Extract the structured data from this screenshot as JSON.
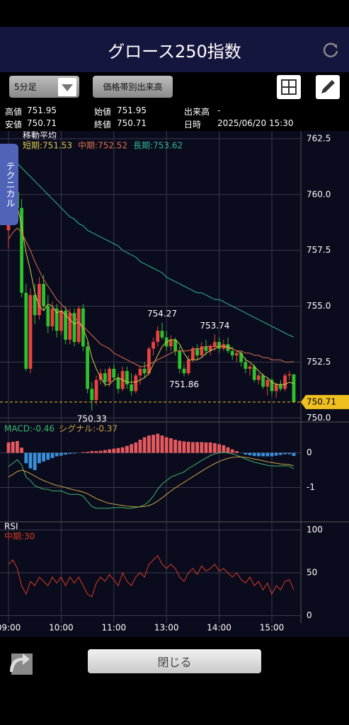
{
  "header": {
    "title": "グロース250指数"
  },
  "toolbar": {
    "interval": "5分足",
    "volume_button": "価格帯別出来高"
  },
  "info": [
    {
      "label": "高値",
      "value": "751.95"
    },
    {
      "label": "始値",
      "value": "751.95"
    },
    {
      "label": "出来高",
      "value": "-"
    },
    {
      "label": "安値",
      "value": "750.71"
    },
    {
      "label": "終値",
      "value": "750.71"
    },
    {
      "label": "日時",
      "value": "2025/06/20 15:30"
    }
  ],
  "side_tab": "テクニカル",
  "footer": {
    "close_button": "閉じる"
  },
  "chart_data": {
    "type": "candlestick",
    "subtitle": "移動平均",
    "categories": [
      "09:00",
      null,
      null,
      null,
      null,
      null,
      null,
      null,
      null,
      null,
      null,
      null,
      "10:00",
      null,
      null,
      null,
      null,
      null,
      null,
      null,
      null,
      null,
      null,
      null,
      "11:00",
      null,
      null,
      null,
      null,
      null,
      null,
      null,
      null,
      null,
      null,
      null,
      "13:00",
      null,
      null,
      null,
      null,
      null,
      null,
      null,
      null,
      null,
      null,
      null,
      "14:00",
      null,
      null,
      null,
      null,
      null,
      null,
      null,
      null,
      null,
      null,
      null,
      "15:00",
      null,
      null,
      null,
      null,
      null
    ],
    "up_color": "#e8433e",
    "down_color": "#2ec12c",
    "candles": [
      [
        758.4,
        759.6,
        757.6,
        759.4
      ],
      [
        759.4,
        760.4,
        758.9,
        760.1
      ],
      [
        760.1,
        760.6,
        759.2,
        759.4
      ],
      [
        759.4,
        759.8,
        755.4,
        755.6
      ],
      [
        755.6,
        756.0,
        752.1,
        752.2
      ],
      [
        752.2,
        755.8,
        752.0,
        755.5
      ],
      [
        755.5,
        756.0,
        754.2,
        754.6
      ],
      [
        754.6,
        756.3,
        754.4,
        756.0
      ],
      [
        756.0,
        756.4,
        754.8,
        755.0
      ],
      [
        755.0,
        755.5,
        753.8,
        754.1
      ],
      [
        754.1,
        755.2,
        753.9,
        754.9
      ],
      [
        754.9,
        755.1,
        753.6,
        753.9
      ],
      [
        753.9,
        755.0,
        753.7,
        754.8
      ],
      [
        754.8,
        755.0,
        753.3,
        753.5
      ],
      [
        753.5,
        754.9,
        753.3,
        754.7
      ],
      [
        754.7,
        754.9,
        753.2,
        753.4
      ],
      [
        753.4,
        755.0,
        753.3,
        754.9
      ],
      [
        754.9,
        755.1,
        753.0,
        753.2
      ],
      [
        753.2,
        753.4,
        751.1,
        751.3
      ],
      [
        751.3,
        751.6,
        750.33,
        750.8
      ],
      [
        750.8,
        751.9,
        750.6,
        751.7
      ],
      [
        751.7,
        752.2,
        751.5,
        752.0
      ],
      [
        752.0,
        752.2,
        751.4,
        751.6
      ],
      [
        751.6,
        752.3,
        751.4,
        752.2
      ],
      [
        752.2,
        752.4,
        751.7,
        751.8
      ],
      [
        751.8,
        752.0,
        751.1,
        751.3
      ],
      [
        751.3,
        752.3,
        751.2,
        752.1
      ],
      [
        752.1,
        752.3,
        751.3,
        751.5
      ],
      [
        751.5,
        752.0,
        751.0,
        751.2
      ],
      [
        751.2,
        752.0,
        751.1,
        751.9
      ],
      [
        751.9,
        752.3,
        751.5,
        752.2
      ],
      [
        752.2,
        752.5,
        751.8,
        752.0
      ],
      [
        752.0,
        753.2,
        751.9,
        753.1
      ],
      [
        753.1,
        753.6,
        752.8,
        753.4
      ],
      [
        753.4,
        754.1,
        753.2,
        753.9
      ],
      [
        753.9,
        754.27,
        753.5,
        753.6
      ],
      [
        753.6,
        753.9,
        753.0,
        753.2
      ],
      [
        753.2,
        753.7,
        753.0,
        753.5
      ],
      [
        753.5,
        753.6,
        752.8,
        753.0
      ],
      [
        753.0,
        753.2,
        752.0,
        752.2
      ],
      [
        752.2,
        752.4,
        751.86,
        752.0
      ],
      [
        752.0,
        752.8,
        751.9,
        752.6
      ],
      [
        752.6,
        753.2,
        752.5,
        753.1
      ],
      [
        753.1,
        753.3,
        752.6,
        752.8
      ],
      [
        752.8,
        753.4,
        752.7,
        753.2
      ],
      [
        753.2,
        753.5,
        752.8,
        753.0
      ],
      [
        753.0,
        753.3,
        752.8,
        753.2
      ],
      [
        753.2,
        753.74,
        753.0,
        753.4
      ],
      [
        753.4,
        753.6,
        752.9,
        753.1
      ],
      [
        753.1,
        753.5,
        753.0,
        753.3
      ],
      [
        753.3,
        753.6,
        752.9,
        753.0
      ],
      [
        753.0,
        753.2,
        752.6,
        752.8
      ],
      [
        752.8,
        753.0,
        752.5,
        752.9
      ],
      [
        752.9,
        753.0,
        752.3,
        752.5
      ],
      [
        752.5,
        752.7,
        752.0,
        752.2
      ],
      [
        752.2,
        752.4,
        751.9,
        752.3
      ],
      [
        752.3,
        752.4,
        751.6,
        751.7
      ],
      [
        751.7,
        752.0,
        751.5,
        751.9
      ],
      [
        751.9,
        752.0,
        751.3,
        751.4
      ],
      [
        751.4,
        751.8,
        751.0,
        751.7
      ],
      [
        751.7,
        751.8,
        751.0,
        751.2
      ],
      [
        751.2,
        751.6,
        750.9,
        751.5
      ],
      [
        751.5,
        751.7,
        751.2,
        751.3
      ],
      [
        751.3,
        752.0,
        751.2,
        751.9
      ],
      [
        751.9,
        752.1,
        751.7,
        751.95
      ],
      [
        751.95,
        751.95,
        750.71,
        750.71
      ]
    ],
    "series": [
      {
        "name": "短期:751.53",
        "color": "#d9c94c",
        "values": [
          758.8,
          759.3,
          759.5,
          758.6,
          757.4,
          756.6,
          755.6,
          755.0,
          754.8,
          755.1,
          755.0,
          754.7,
          754.8,
          754.6,
          754.4,
          754.2,
          754.3,
          754.0,
          753.5,
          752.7,
          752.2,
          751.8,
          751.5,
          751.5,
          751.7,
          751.8,
          751.7,
          751.6,
          751.6,
          751.6,
          751.7,
          751.8,
          752.0,
          752.4,
          752.8,
          753.2,
          753.4,
          753.5,
          753.5,
          753.3,
          752.9,
          752.6,
          752.6,
          752.6,
          752.7,
          752.9,
          753.0,
          753.1,
          753.2,
          753.2,
          753.2,
          753.1,
          753.0,
          752.9,
          752.6,
          752.5,
          752.3,
          752.1,
          751.9,
          751.8,
          751.6,
          751.5,
          751.5,
          751.5,
          751.6,
          751.53
        ]
      },
      {
        "name": "中期:752.52",
        "color": "#e0704c",
        "values": [
          758.0,
          758.3,
          758.5,
          758.3,
          757.9,
          757.5,
          757.0,
          756.6,
          756.2,
          755.9,
          755.6,
          755.3,
          755.1,
          754.9,
          754.7,
          754.5,
          754.3,
          754.1,
          753.9,
          753.7,
          753.5,
          753.3,
          753.2,
          753.1,
          752.9,
          752.8,
          752.7,
          752.6,
          752.5,
          752.4,
          752.3,
          752.3,
          752.4,
          752.5,
          752.6,
          752.7,
          752.8,
          752.9,
          753.0,
          753.0,
          753.0,
          753.0,
          753.1,
          753.1,
          753.1,
          753.2,
          753.2,
          753.2,
          753.2,
          753.2,
          753.1,
          753.1,
          753.0,
          753.0,
          752.9,
          752.9,
          752.8,
          752.8,
          752.7,
          752.7,
          752.6,
          752.6,
          752.6,
          752.5,
          752.5,
          752.52
        ]
      },
      {
        "name": "長期:753.62",
        "color": "#2fb99a",
        "values": [
          761.8,
          761.6,
          761.4,
          761.2,
          761.0,
          760.8,
          760.6,
          760.4,
          760.2,
          760.0,
          759.8,
          759.6,
          759.4,
          759.2,
          759.0,
          758.9,
          758.7,
          758.6,
          758.4,
          758.3,
          758.2,
          758.1,
          758.0,
          757.9,
          757.8,
          757.7,
          757.5,
          757.4,
          757.3,
          757.2,
          757.0,
          756.9,
          756.8,
          756.7,
          756.6,
          756.5,
          756.3,
          756.2,
          756.1,
          756.0,
          755.9,
          755.8,
          755.7,
          755.6,
          755.6,
          755.5,
          755.4,
          755.3,
          755.3,
          755.2,
          755.1,
          755.0,
          754.9,
          754.8,
          754.7,
          754.6,
          754.5,
          754.4,
          754.3,
          754.2,
          754.1,
          754.0,
          753.9,
          753.8,
          753.7,
          753.62
        ]
      }
    ],
    "annotations": [
      {
        "label": "754.27",
        "value": 754.27
      },
      {
        "label": "753.74",
        "value": 753.74
      },
      {
        "label": "751.86",
        "value": 751.86
      },
      {
        "label": "750.33",
        "value": 750.33
      }
    ],
    "last_price": 750.71,
    "last_price_color": "#f0c020",
    "ylim": [
      749.85,
      762.75
    ],
    "yticks": [
      {
        "value": 750,
        "label": "750.0"
      },
      752.5,
      {
        "value": 755,
        "label": "755.0"
      },
      757.5,
      {
        "value": 760,
        "label": "760.0"
      },
      762.5
    ],
    "grid": true,
    "macd": {
      "series": [
        {
          "name": "MACD:-0.46",
          "color": "#3cb86c",
          "values": [
            -0.4,
            -0.3,
            -0.2,
            -0.35,
            -0.7,
            -0.8,
            -0.95,
            -1.0,
            -1.05,
            -1.05,
            -1.1,
            -1.1,
            -1.1,
            -1.15,
            -1.2,
            -1.2,
            -1.2,
            -1.25,
            -1.4,
            -1.55,
            -1.6,
            -1.6,
            -1.6,
            -1.6,
            -1.58,
            -1.58,
            -1.58,
            -1.6,
            -1.6,
            -1.58,
            -1.55,
            -1.5,
            -1.4,
            -1.25,
            -1.05,
            -0.9,
            -0.8,
            -0.7,
            -0.65,
            -0.6,
            -0.55,
            -0.45,
            -0.38,
            -0.3,
            -0.22,
            -0.15,
            -0.08,
            -0.03,
            0.0,
            0.02,
            0.0,
            -0.03,
            -0.07,
            -0.12,
            -0.18,
            -0.22,
            -0.27,
            -0.3,
            -0.33,
            -0.36,
            -0.38,
            -0.38,
            -0.38,
            -0.37,
            -0.38,
            -0.46
          ]
        },
        {
          "name": "シグナル:-0.37",
          "color": "#c9a33e",
          "values": [
            -0.7,
            -0.62,
            -0.54,
            -0.5,
            -0.54,
            -0.6,
            -0.67,
            -0.74,
            -0.8,
            -0.85,
            -0.9,
            -0.94,
            -0.97,
            -1.0,
            -1.04,
            -1.07,
            -1.1,
            -1.13,
            -1.18,
            -1.25,
            -1.32,
            -1.37,
            -1.42,
            -1.46,
            -1.48,
            -1.5,
            -1.52,
            -1.54,
            -1.55,
            -1.56,
            -1.56,
            -1.55,
            -1.52,
            -1.47,
            -1.39,
            -1.3,
            -1.2,
            -1.1,
            -1.01,
            -0.93,
            -0.85,
            -0.77,
            -0.69,
            -0.61,
            -0.53,
            -0.45,
            -0.38,
            -0.31,
            -0.25,
            -0.2,
            -0.16,
            -0.13,
            -0.12,
            -0.12,
            -0.13,
            -0.15,
            -0.18,
            -0.2,
            -0.23,
            -0.26,
            -0.28,
            -0.3,
            -0.32,
            -0.33,
            -0.34,
            -0.37
          ]
        }
      ],
      "histogram": [
        0.3,
        0.32,
        0.34,
        0.15,
        -0.3,
        -0.45,
        -0.5,
        -0.3,
        -0.25,
        -0.2,
        -0.15,
        -0.1,
        -0.08,
        -0.05,
        -0.03,
        -0.02,
        0.0,
        0.02,
        0.03,
        0.05,
        0.05,
        0.06,
        0.08,
        0.1,
        0.12,
        0.14,
        0.16,
        0.2,
        0.25,
        0.3,
        0.38,
        0.45,
        0.5,
        0.52,
        0.55,
        0.5,
        0.45,
        0.42,
        0.38,
        0.35,
        0.33,
        0.32,
        0.31,
        0.31,
        0.31,
        0.3,
        0.3,
        0.28,
        0.25,
        0.22,
        0.16,
        0.1,
        0.05,
        0.0,
        -0.05,
        -0.07,
        -0.09,
        -0.1,
        -0.1,
        -0.1,
        -0.1,
        -0.08,
        -0.06,
        -0.04,
        -0.04,
        -0.09
      ],
      "histogram_up_color": "#e65a5e",
      "histogram_down_color": "#3a90d8",
      "ylim": [
        -1.95,
        0.85
      ],
      "yticks": [
        0,
        -1
      ]
    },
    "rsi": {
      "title": "RSI",
      "series": [
        {
          "name": "中期:30",
          "color": "#d83c20",
          "values": [
            60,
            65,
            55,
            35,
            25,
            40,
            35,
            45,
            40,
            35,
            45,
            38,
            45,
            35,
            45,
            38,
            45,
            35,
            25,
            22,
            38,
            45,
            40,
            48,
            42,
            35,
            50,
            40,
            35,
            45,
            50,
            45,
            60,
            65,
            70,
            60,
            55,
            60,
            55,
            45,
            40,
            50,
            55,
            48,
            58,
            52,
            55,
            60,
            52,
            55,
            50,
            45,
            50,
            42,
            38,
            45,
            35,
            40,
            30,
            38,
            25,
            35,
            30,
            40,
            42,
            30
          ]
        }
      ],
      "ylim": [
        -7,
        107
      ],
      "yticks": [
        100,
        50,
        0
      ]
    }
  }
}
